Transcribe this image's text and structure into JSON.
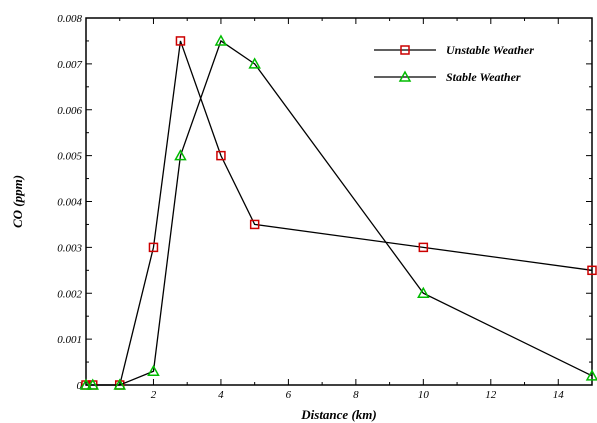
{
  "chart_data": {
    "type": "line",
    "title": "",
    "xlabel": "Distance (km)",
    "ylabel": "CO (ppm)",
    "xlim": [
      0,
      15
    ],
    "ylim": [
      0,
      0.008
    ],
    "x_ticks": [
      2,
      4,
      6,
      8,
      10,
      12,
      14
    ],
    "x_tick_labels": [
      "2",
      "4",
      "6",
      "8",
      "10",
      "12",
      "14"
    ],
    "y_ticks": [
      0,
      0.001,
      0.002,
      0.003,
      0.004,
      0.005,
      0.006,
      0.007,
      0.008
    ],
    "y_tick_labels": [
      "0",
      "0.001",
      "0.002",
      "0.003",
      "0.004",
      "0.005",
      "0.006",
      "0.007",
      "0.008"
    ],
    "grid": false,
    "legend_position": "top-right",
    "series": [
      {
        "name": "Unstable Weather",
        "color": "#cc0000",
        "marker": "square",
        "x": [
          0,
          0.2,
          1,
          2,
          2.8,
          4,
          5,
          10,
          15
        ],
        "y": [
          0,
          0,
          0,
          0.003,
          0.0075,
          0.005,
          0.0035,
          0.003,
          0.0025
        ]
      },
      {
        "name": "Stable Weather",
        "color": "#00bb00",
        "marker": "triangle",
        "x": [
          0,
          0.2,
          1,
          2,
          2.8,
          4,
          5,
          10,
          15
        ],
        "y": [
          0,
          0,
          0,
          0.0003,
          0.005,
          0.0075,
          0.007,
          0.002,
          0.0002
        ]
      }
    ]
  }
}
